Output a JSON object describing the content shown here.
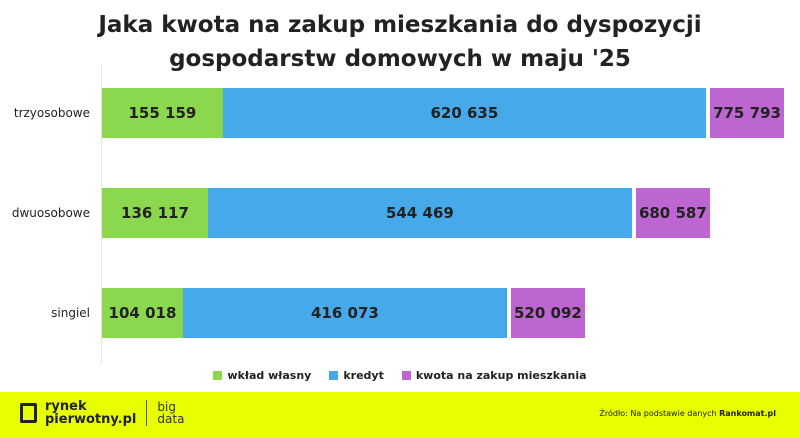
{
  "chart_data": {
    "type": "bar",
    "stacked": true,
    "title": "Jaka kwota na zakup mieszkania do dyspozycji gospodarstw domowych w maju '25",
    "title_lines": [
      "Jaka kwota na zakup mieszkania do dyspozycji",
      "gospodarstw domowych w maju '25"
    ],
    "categories": [
      "trzyosobowe",
      "dwuosobowe",
      "singiel"
    ],
    "series": [
      {
        "name": "wkład własny",
        "color": "#8bd74e",
        "values": [
          155159,
          136117,
          104018
        ],
        "labels": [
          "155 159",
          "136 117",
          "104 018"
        ]
      },
      {
        "name": "kredyt",
        "color": "#46a9ea",
        "values": [
          620635,
          544469,
          416073
        ],
        "labels": [
          "620 635",
          "544 469",
          "416 073"
        ]
      },
      {
        "name": "kwota na zakup mieszkania",
        "color": "#bd65d1",
        "values": [
          775793,
          680587,
          520092
        ],
        "labels": [
          "775 793",
          "680 587",
          "520 092"
        ]
      }
    ],
    "legend_position": "bottom",
    "grid": false
  },
  "footer": {
    "logo_line1": "rynek",
    "logo_line2": "pierwotny.pl",
    "bd_line1": "big",
    "bd_line2": "data",
    "source_prefix": "Źródło: Na podstawie danych ",
    "source_bold": "Rankomat.pl"
  }
}
